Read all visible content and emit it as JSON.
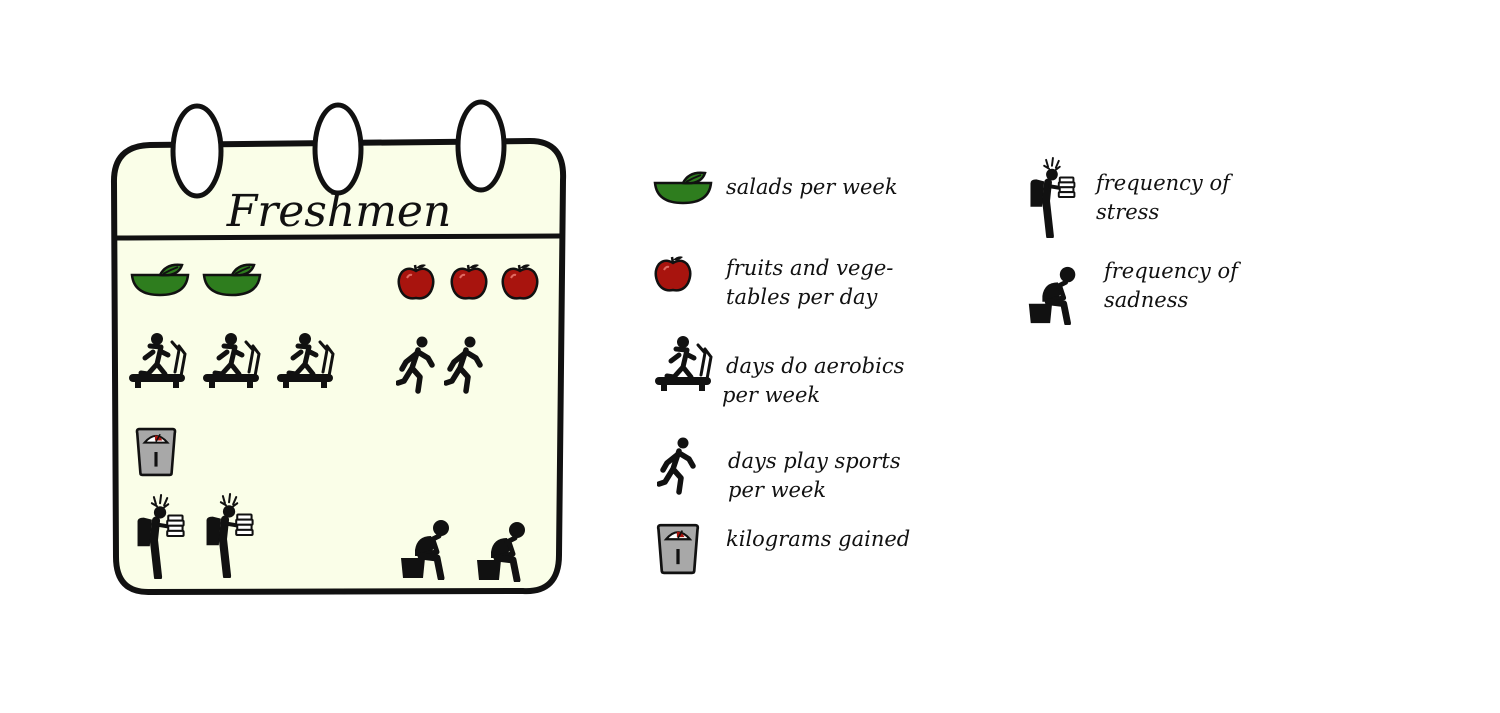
{
  "card": {
    "title": "Freshmen"
  },
  "icon_counts": {
    "salads_per_week": 2,
    "fruits_and_vegetables_per_day": 3,
    "days_do_aerobics_per_week": 3,
    "days_play_sports_per_week": 2,
    "kilograms_gained": 1,
    "frequency_of_stress": 2,
    "frequency_of_sadness": 2
  },
  "legend": {
    "salad": {
      "label": "salads per week"
    },
    "fruit": {
      "line1": "fruits and vege-",
      "line2": "tables per day"
    },
    "aerobics": {
      "line1": "days do aerobics",
      "line2": "per week"
    },
    "sports": {
      "line1": "days play sports",
      "line2": "per week"
    },
    "scale": {
      "label": "kilograms gained"
    },
    "stress": {
      "line1": "frequency of",
      "line2": "stress"
    },
    "sadness": {
      "line1": "frequency of",
      "line2": "sadness"
    }
  },
  "colors": {
    "card_fill": "#fafee8",
    "salad_green": "#2e7d1e",
    "fruit_red": "#a8140e",
    "scale_gray": "#a8a8a8",
    "ink": "#111111"
  }
}
